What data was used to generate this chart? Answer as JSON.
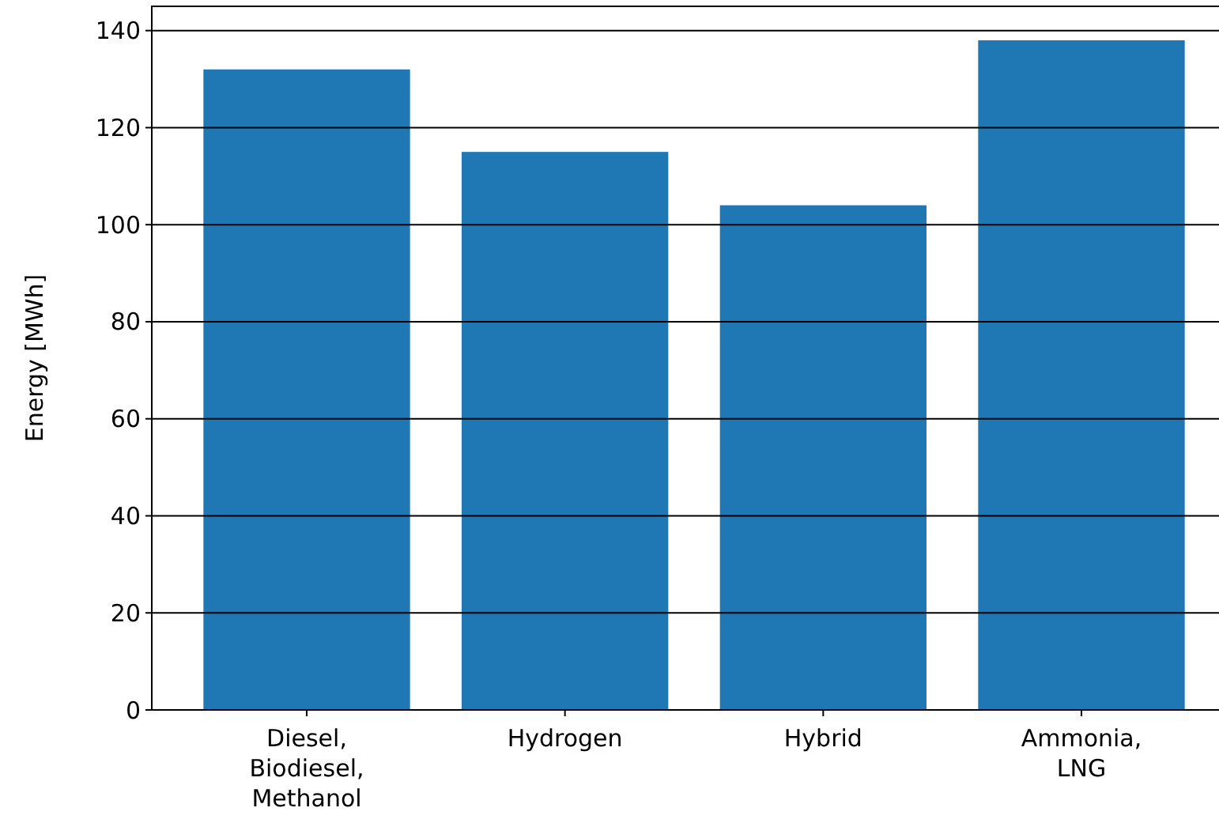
{
  "chart_data": {
    "type": "bar",
    "ylabel": "Energy [MWh]",
    "categories": [
      "Diesel, Biodiesel, Methanol",
      "Hydrogen",
      "Hybrid",
      "Ammonia, LNG"
    ],
    "values": [
      132,
      115,
      104,
      138
    ],
    "color": "#1f77b4",
    "ylim": [
      0,
      145
    ],
    "yticks": [
      0,
      20,
      40,
      60,
      80,
      100,
      120,
      140
    ],
    "grid": "y"
  }
}
